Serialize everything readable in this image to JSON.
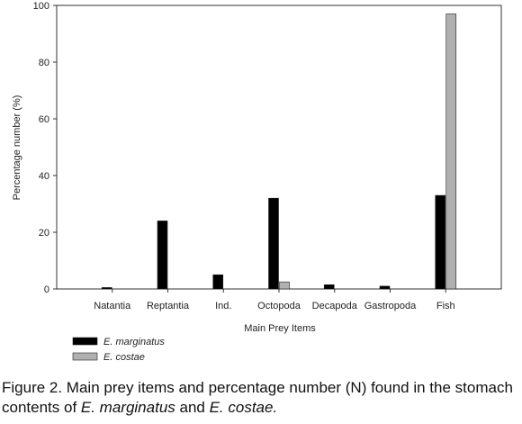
{
  "chart_data": {
    "type": "bar",
    "categories": [
      "Natantia",
      "Reptantia",
      "Ind.",
      "Octopoda",
      "Decapoda",
      "Gastropoda",
      "Fish"
    ],
    "series": [
      {
        "name": "E. marginatus",
        "color": "#000000",
        "values": [
          0.5,
          24,
          5,
          32,
          1.5,
          1,
          33
        ]
      },
      {
        "name": "E. costae",
        "color": "#b0b0b0",
        "values": [
          0,
          0,
          0,
          2.5,
          0,
          0,
          97
        ]
      }
    ],
    "xlabel": "Main Prey Items",
    "ylabel": "Percentage number (%)",
    "ylim": [
      0,
      100
    ],
    "yticks": [
      0,
      20,
      40,
      60,
      80,
      100
    ],
    "grid": false,
    "legend_position": "bottom-left"
  },
  "caption": {
    "prefix": "Figure 2. Main prey items and percentage number (N) found in the stomach contents of ",
    "species1": "E. marginatus",
    "conj": " and ",
    "species2": "E. costae."
  }
}
